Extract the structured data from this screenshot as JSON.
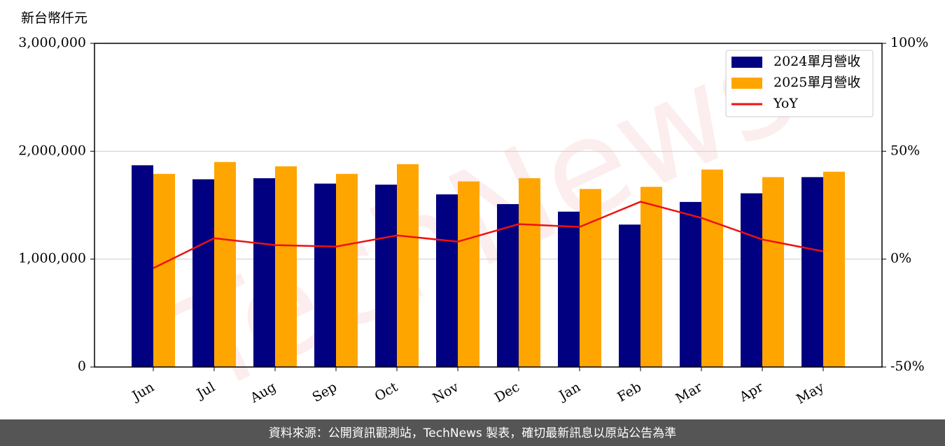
{
  "chart_data": {
    "type": "bar",
    "ylabel": "新台幣仟元",
    "categories": [
      "Jun",
      "Jul",
      "Aug",
      "Sep",
      "Oct",
      "Nov",
      "Dec",
      "Jan",
      "Feb",
      "Mar",
      "Apr",
      "May"
    ],
    "series": [
      {
        "name": "2024單月營收",
        "color": "#000080",
        "values": [
          1870000,
          1740000,
          1750000,
          1700000,
          1690000,
          1600000,
          1510000,
          1440000,
          1320000,
          1530000,
          1610000,
          1760000
        ]
      },
      {
        "name": "2025單月營收",
        "color": "#ffa500",
        "values": [
          1790000,
          1900000,
          1860000,
          1790000,
          1880000,
          1720000,
          1750000,
          1650000,
          1670000,
          1830000,
          1760000,
          1810000
        ]
      },
      {
        "name": "YoY",
        "color": "#ee1111",
        "type": "line",
        "axis": "y2",
        "values": [
          -4.2,
          9.7,
          6.5,
          5.8,
          11,
          8.1,
          16.2,
          14.9,
          26.6,
          19.1,
          9.1,
          3.6
        ]
      }
    ],
    "ylim": [
      0,
      3000000
    ],
    "yticks": [
      0,
      {
        "value": 1000000,
        "label": "1,000,000"
      },
      {
        "value": 2000000,
        "label": "2,000,000"
      },
      {
        "value": 3000000,
        "label": "3,000,000"
      }
    ],
    "y2lim": [
      -50,
      100
    ],
    "y2ticks": [
      {
        "value": -50,
        "label": "-50%"
      },
      {
        "value": 0,
        "label": "0%"
      },
      {
        "value": 50,
        "label": "50%"
      },
      {
        "value": 100,
        "label": "100%"
      }
    ],
    "grid": true,
    "legend": "upper right",
    "watermark": "TechNews",
    "footer": "資料來源：公開資訊觀測站，TechNews 製表，確切最新訊息以原站公告為準"
  }
}
